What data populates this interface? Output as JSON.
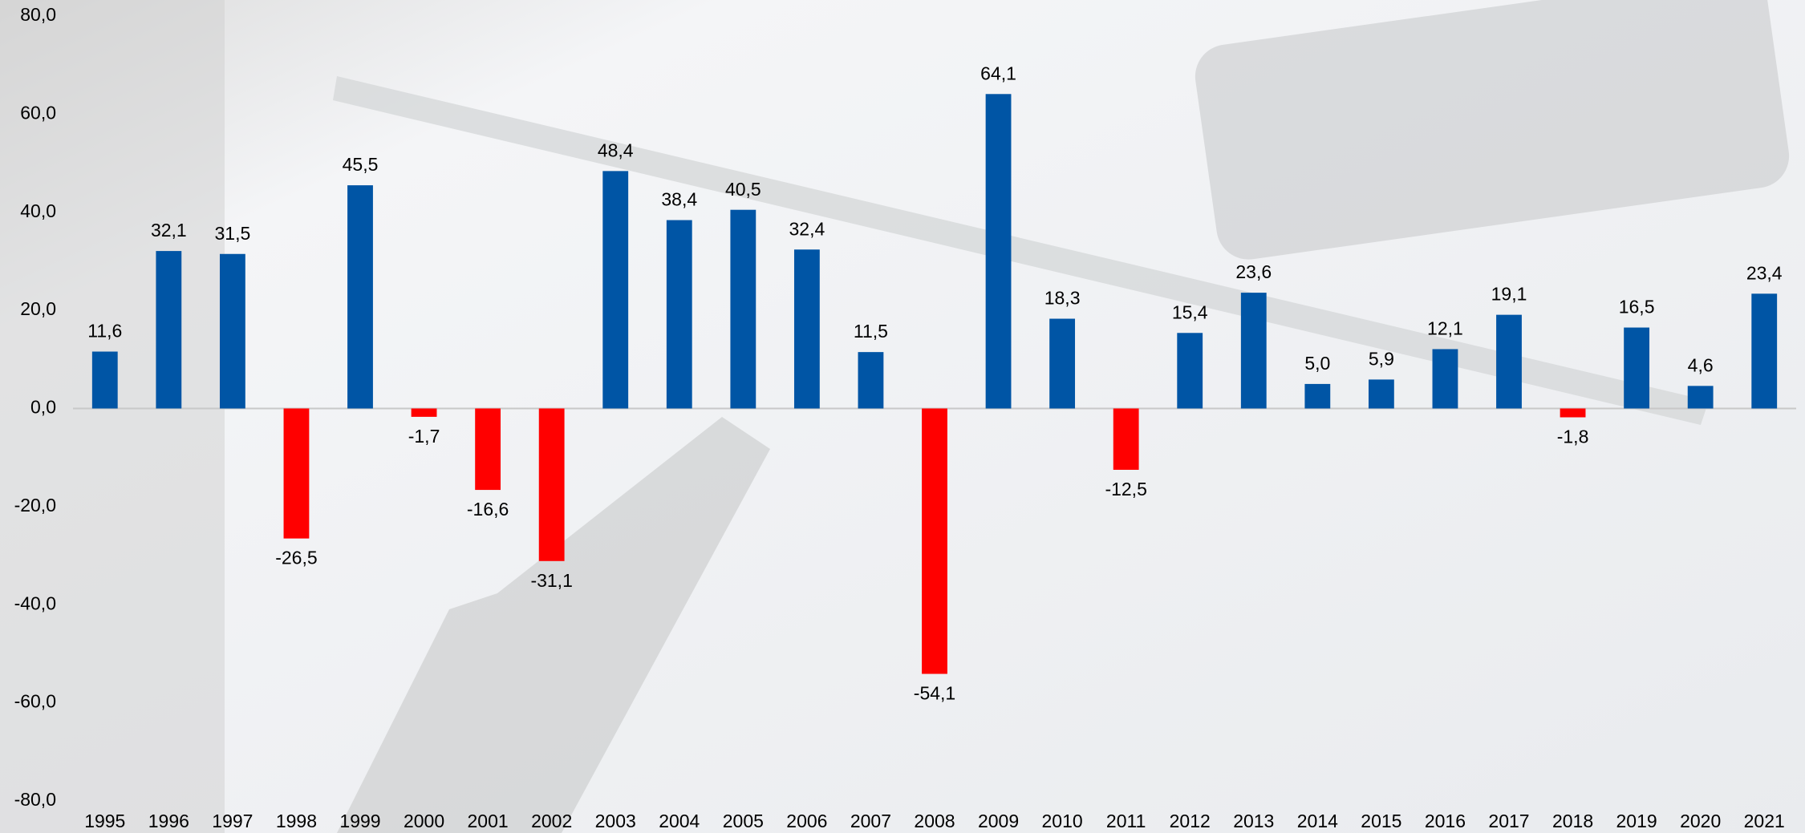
{
  "chart_data": {
    "type": "bar",
    "categories": [
      "1995",
      "1996",
      "1997",
      "1998",
      "1999",
      "2000",
      "2001",
      "2002",
      "2003",
      "2004",
      "2005",
      "2006",
      "2007",
      "2008",
      "2009",
      "2010",
      "2011",
      "2012",
      "2013",
      "2014",
      "2015",
      "2016",
      "2017",
      "2018",
      "2019",
      "2020",
      "2021"
    ],
    "values": [
      11.6,
      32.1,
      31.5,
      -26.5,
      45.5,
      -1.7,
      -16.6,
      -31.1,
      48.4,
      38.4,
      40.5,
      32.4,
      11.5,
      -54.1,
      64.1,
      18.3,
      -12.5,
      15.4,
      23.6,
      5.0,
      5.9,
      12.1,
      19.1,
      -1.8,
      16.5,
      4.6,
      23.4
    ],
    "value_labels": [
      "11,6",
      "32,1",
      "31,5",
      "-26,5",
      "45,5",
      "-1,7",
      "-16,6",
      "-31,1",
      "48,4",
      "38,4",
      "40,5",
      "32,4",
      "11,5",
      "-54,1",
      "64,1",
      "18,3",
      "-12,5",
      "15,4",
      "23,6",
      "5,0",
      "5,9",
      "12,1",
      "19,1",
      "-1,8",
      "16,5",
      "4,6",
      "23,4"
    ],
    "positive_color": "#0055a5",
    "negative_color": "#ff0000",
    "ylim": [
      -80,
      80
    ],
    "yticks": [
      {
        "value": -80,
        "label": "-80,0"
      },
      {
        "value": -60,
        "label": "-60,0"
      },
      {
        "value": -40,
        "label": "-40,0"
      },
      {
        "value": -20,
        "label": "-20,0"
      },
      {
        "value": 0,
        "label": "0,0"
      },
      {
        "value": 20,
        "label": "20,0"
      },
      {
        "value": 40,
        "label": "40,0"
      },
      {
        "value": 60,
        "label": "60,0"
      },
      {
        "value": 80,
        "label": "80,0"
      }
    ],
    "grid": false
  }
}
